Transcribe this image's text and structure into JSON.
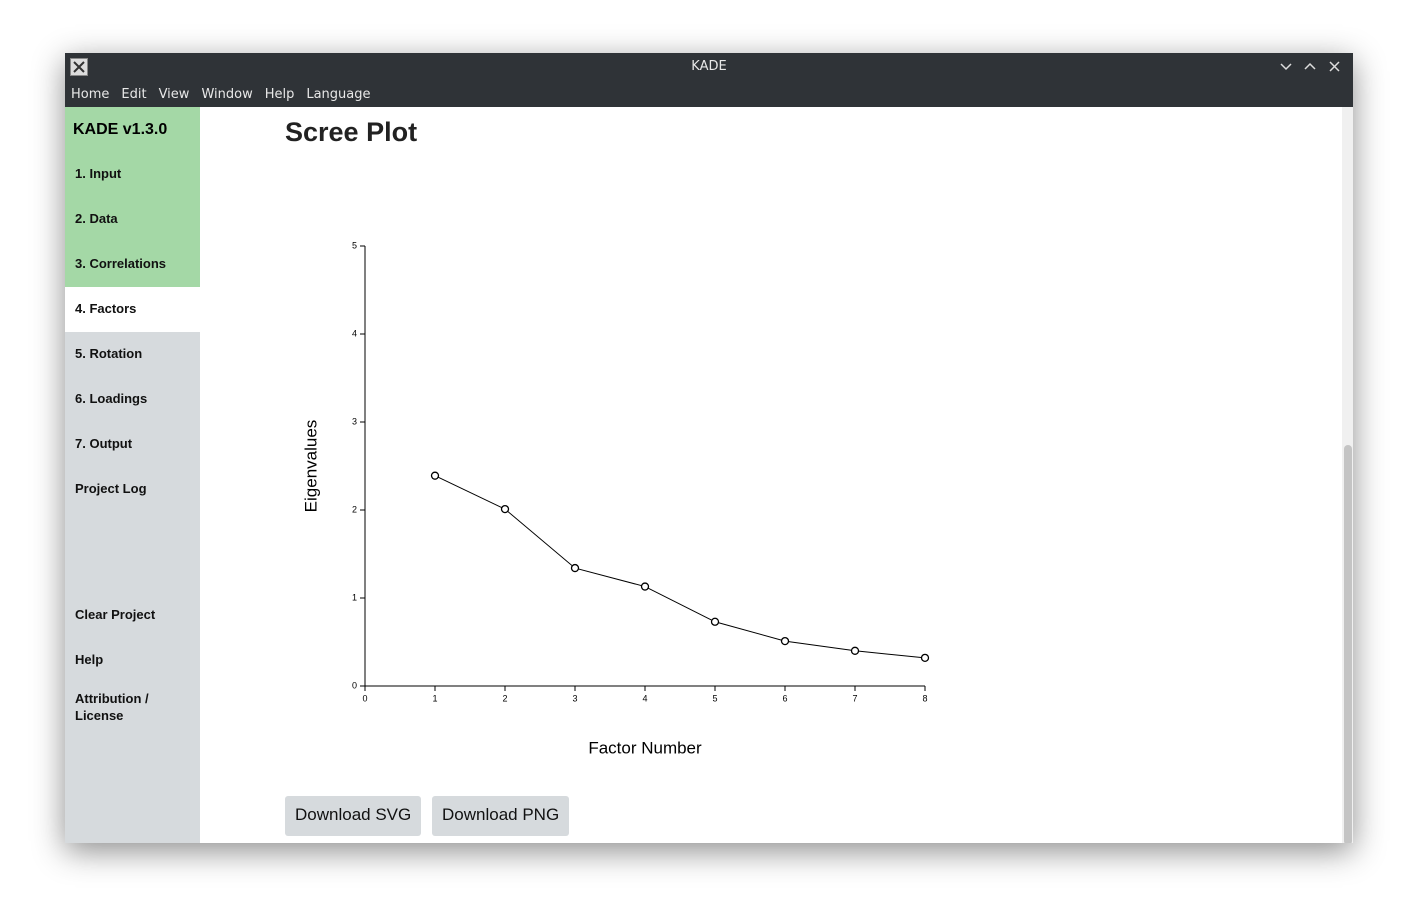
{
  "window": {
    "title": "KADE"
  },
  "menu": {
    "items": [
      "Home",
      "Edit",
      "View",
      "Window",
      "Help",
      "Language"
    ]
  },
  "sidebar": {
    "brand": "KADE v1.3.0",
    "items": [
      "1. Input",
      "2. Data",
      "3. Correlations",
      "4. Factors",
      "5. Rotation",
      "6. Loadings",
      "7. Output",
      "Project Log"
    ],
    "bottom_items": [
      "Clear Project",
      "Help",
      "Attribution / License"
    ]
  },
  "content": {
    "heading": "Scree Plot",
    "buttons": [
      "Download SVG",
      "Download PNG"
    ]
  },
  "chart_data": {
    "type": "line",
    "x_label": "Factor Number",
    "y_label": "Eigenvalues",
    "x": [
      1,
      2,
      3,
      4,
      5,
      6,
      7,
      8
    ],
    "values": [
      2.39,
      2.01,
      1.34,
      1.13,
      0.73,
      0.51,
      0.4,
      0.32
    ],
    "color": "#000000",
    "xlim": [
      0,
      8
    ],
    "xticks": [
      0,
      1,
      2,
      3,
      4,
      5,
      6,
      7,
      8
    ],
    "ylim": [
      0,
      5
    ],
    "yticks": [
      0,
      1,
      2,
      3,
      4,
      5
    ],
    "grid": false
  }
}
